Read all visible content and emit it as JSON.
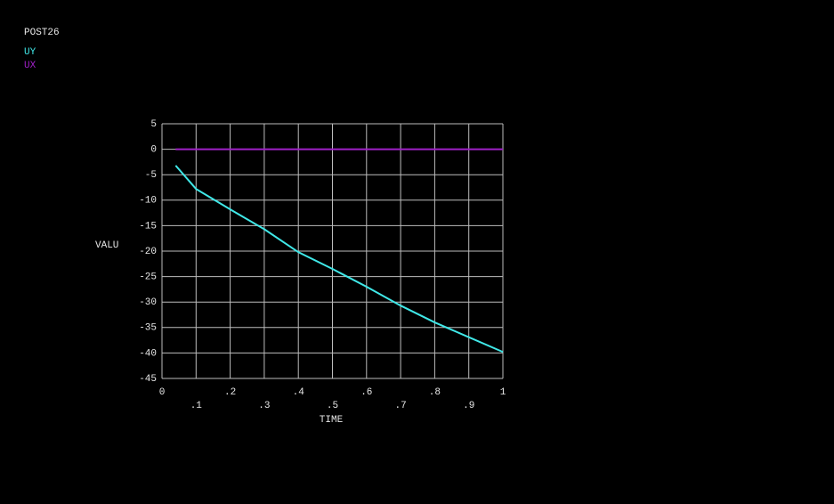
{
  "chart_data": {
    "type": "line",
    "title": "POST26",
    "x_label": "TIME",
    "y_label": "VALU",
    "x": [
      0.04,
      0.1,
      0.2,
      0.3,
      0.4,
      0.5,
      0.6,
      0.7,
      0.8,
      0.9,
      1
    ],
    "series": [
      {
        "name": "UY",
        "color": "#40e8e8",
        "values": [
          -3.2,
          -7.8,
          -11.8,
          -15.7,
          -20.2,
          -23.5,
          -27,
          -30.7,
          -34,
          -36.9,
          -39.8
        ]
      },
      {
        "name": "UX",
        "color": "#a020c8",
        "values": [
          0,
          0,
          0,
          0,
          0,
          0,
          0,
          0,
          0,
          0,
          0
        ]
      }
    ],
    "xlim": [
      0,
      1
    ],
    "xticks": [
      0,
      {
        "value": 0.1,
        "label": ".1"
      },
      {
        "value": 0.2,
        "label": ".2"
      },
      {
        "value": 0.3,
        "label": ".3"
      },
      {
        "value": 0.4,
        "label": ".4"
      },
      {
        "value": 0.5,
        "label": ".5"
      },
      {
        "value": 0.6,
        "label": ".6"
      },
      {
        "value": 0.7,
        "label": ".7"
      },
      {
        "value": 0.8,
        "label": ".8"
      },
      {
        "value": 0.9,
        "label": ".9"
      },
      1
    ],
    "ylim": [
      -45,
      5
    ],
    "yticks": [
      5,
      0,
      -5,
      -10,
      -15,
      -20,
      -25,
      -30,
      -35,
      -40,
      -45
    ],
    "grid": true
  }
}
